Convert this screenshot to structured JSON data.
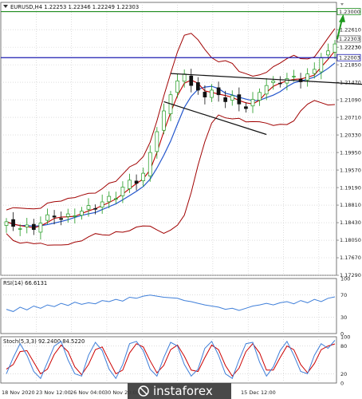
{
  "header": {
    "symbol_line": "EURUSD,H4  1.22253 1.22346 1.22249 1.22303"
  },
  "colors": {
    "background": "#ffffff",
    "grid": "#c8c8c8",
    "candle_up": "#1e9a1e",
    "candle_down": "#111111",
    "bollinger": "#a00000",
    "ma_fast": "#c00000",
    "ma_slow": "#2255cc",
    "level_green": "#1e8c1e",
    "level_blue": "#1c1cb0",
    "arrow": "#1e9a1e",
    "rsi_line": "#3f7fd9",
    "stoch_main": "#3f7fd9",
    "stoch_signal": "#cc0000",
    "logo_bg": "#3a3a3a"
  },
  "chart_data": [
    {
      "type": "candlestick",
      "name": "price",
      "ylim": [
        1.1729,
        1.232
      ],
      "y_ticks": [
        "1.22610",
        "1.22230",
        "1.21850",
        "1.21470",
        "1.21090",
        "1.20710",
        "1.20330",
        "1.19950",
        "1.19570",
        "1.19190",
        "1.18810",
        "1.18430",
        "1.18050",
        "1.17670",
        "1.17290"
      ],
      "y_tick_values": [
        1.2261,
        1.2223,
        1.2185,
        1.2147,
        1.2109,
        1.2071,
        1.2033,
        1.1995,
        1.1957,
        1.1919,
        1.1881,
        1.1843,
        1.1805,
        1.1767,
        1.1729
      ],
      "x_labels": [
        "18 Nov 2020",
        "23 Nov 12:00",
        "26 Nov 04:00",
        "30 Nov 20:00",
        "15 Dec 12:00"
      ],
      "levels": [
        {
          "label": "1.23000",
          "value": 1.23
        },
        {
          "label": "1.22003",
          "value": 1.22003
        }
      ],
      "current_price_label": "1.22303",
      "current_price": 1.22303,
      "current_price_ghost": "1.22230",
      "trendlines": [
        {
          "from": [
            24,
            1.2166
          ],
          "to": [
            60,
            1.2136
          ]
        },
        {
          "from": [
            23,
            1.2105
          ],
          "to": [
            38,
            1.2034
          ]
        }
      ],
      "close": [
        1.1845,
        1.1835,
        1.183,
        1.1838,
        1.1828,
        1.1842,
        1.186,
        1.1855,
        1.185,
        1.1862,
        1.1858,
        1.1868,
        1.188,
        1.1872,
        1.1888,
        1.19,
        1.1895,
        1.192,
        1.1935,
        1.1928,
        1.195,
        1.1995,
        1.204,
        1.2085,
        1.212,
        1.215,
        1.2165,
        1.214,
        1.213,
        1.2115,
        1.213,
        1.212,
        1.2105,
        1.2118,
        1.21,
        1.209,
        1.211,
        1.2125,
        1.214,
        1.215,
        1.2145,
        1.2155,
        1.216,
        1.2148,
        1.2165,
        1.2175,
        1.22,
        1.2215,
        1.223
      ],
      "volatility": 0.0016
    },
    {
      "type": "line",
      "name": "RSI",
      "label": "RSI(14) 66.6131",
      "ylim": [
        0,
        100
      ],
      "y_ticks": [
        "100",
        "70",
        "30",
        "0"
      ],
      "y_tick_values": [
        100,
        70,
        30,
        0
      ],
      "values": [
        44,
        40,
        48,
        43,
        50,
        46,
        52,
        49,
        55,
        51,
        57,
        53,
        56,
        54,
        60,
        58,
        62,
        59,
        66,
        64,
        68,
        70,
        68,
        66,
        65,
        64,
        60,
        58,
        55,
        52,
        50,
        48,
        44,
        46,
        42,
        46,
        50,
        52,
        55,
        52,
        56,
        58,
        54,
        60,
        56,
        62,
        58,
        64,
        66.6
      ]
    },
    {
      "type": "line",
      "name": "Stochastic",
      "label": "Stoch(5,3,3) 92.2400 84.5220",
      "ylim": [
        0,
        100
      ],
      "y_ticks": [
        "100",
        "80",
        "20",
        "0"
      ],
      "y_tick_values": [
        100,
        80,
        20,
        0
      ],
      "series": [
        {
          "name": "92.2400",
          "values": [
            20,
            55,
            85,
            60,
            25,
            10,
            45,
            80,
            90,
            50,
            20,
            15,
            60,
            88,
            70,
            30,
            10,
            40,
            85,
            90,
            70,
            30,
            15,
            55,
            88,
            80,
            40,
            15,
            30,
            75,
            90,
            60,
            20,
            10,
            50,
            85,
            88,
            45,
            15,
            35,
            70,
            90,
            60,
            25,
            20,
            60,
            85,
            75,
            92.2
          ]
        },
        {
          "name": "84.5220",
          "values": [
            30,
            40,
            68,
            70,
            45,
            20,
            30,
            62,
            82,
            68,
            35,
            18,
            40,
            72,
            78,
            48,
            20,
            28,
            65,
            85,
            78,
            48,
            22,
            38,
            72,
            82,
            58,
            28,
            25,
            55,
            82,
            72,
            38,
            15,
            32,
            68,
            85,
            65,
            28,
            28,
            55,
            80,
            72,
            40,
            22,
            42,
            72,
            80,
            84.5
          ]
        }
      ]
    }
  ],
  "logo": {
    "text": "instaforex"
  }
}
